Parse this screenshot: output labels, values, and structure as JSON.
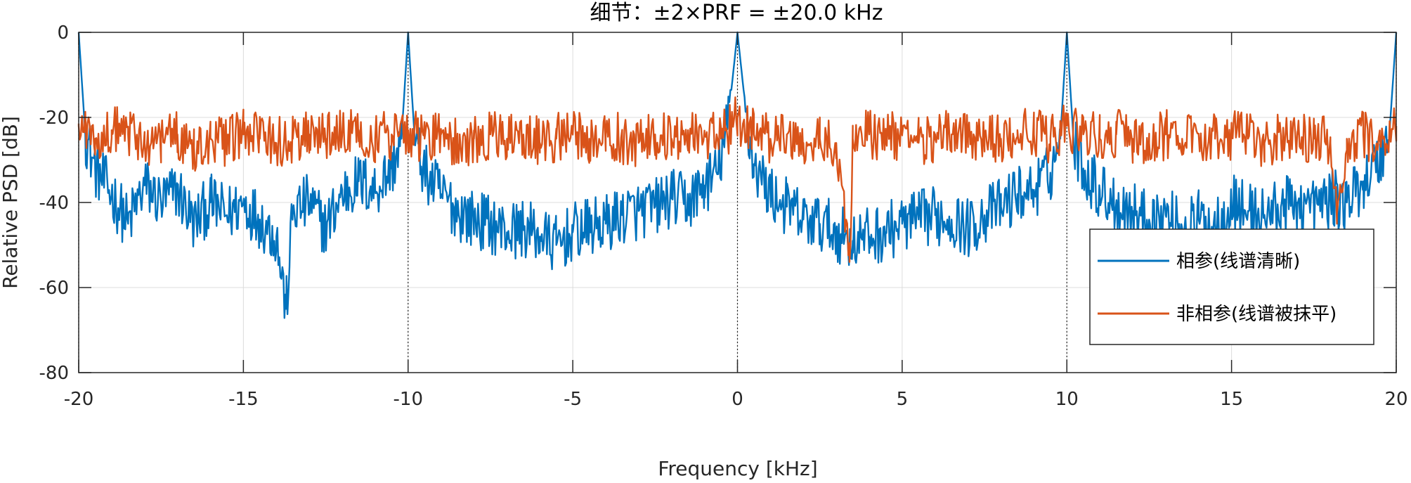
{
  "chart_data": {
    "type": "line",
    "title": "细节：±2×PRF = ±20.0 kHz",
    "xlabel": "Frequency [kHz]",
    "ylabel": "Relative PSD [dB]",
    "xlim": [
      -20,
      20
    ],
    "ylim": [
      -80,
      0
    ],
    "xticks": [
      -20,
      -15,
      -10,
      -5,
      0,
      5,
      10,
      15,
      20
    ],
    "xtick_labels": [
      "-20",
      "-15",
      "-10",
      "-5",
      "0",
      "5",
      "10",
      "15",
      "20"
    ],
    "yticks": [
      -80,
      -60,
      -40,
      -20,
      0
    ],
    "ytick_labels": [
      "-80",
      "-60",
      "-40",
      "-20",
      "0"
    ],
    "grid": true,
    "legend_position": "lower-right",
    "prf_markers_khz": [
      -20,
      -10,
      0,
      10,
      20
    ],
    "series": [
      {
        "name": "相参(线谱清晰)",
        "color": "#0072BD",
        "x": [
          -20,
          -19.8,
          -19.5,
          -19,
          -18.5,
          -18,
          -17.5,
          -17,
          -16.5,
          -16,
          -15.5,
          -15,
          -14.5,
          -14,
          -13.7,
          -13.5,
          -13,
          -12.5,
          -12,
          -11.5,
          -11,
          -10.5,
          -10.2,
          -10,
          -9.8,
          -9.5,
          -9,
          -8.5,
          -8,
          -7.5,
          -7,
          -6.5,
          -6,
          -5.5,
          -5,
          -4.5,
          -4,
          -3.5,
          -3,
          -2.5,
          -2,
          -1.5,
          -1,
          -0.6,
          -0.3,
          0,
          0.3,
          0.5,
          1,
          1.5,
          2,
          2.5,
          3,
          3.5,
          4,
          4.5,
          5,
          5.5,
          6,
          6.5,
          7,
          7.5,
          8,
          8.5,
          9,
          9.5,
          9.8,
          10,
          10.2,
          10.5,
          11,
          11.5,
          12,
          12.5,
          13,
          13.5,
          14,
          14.5,
          15,
          15.5,
          16,
          16.5,
          17,
          17.5,
          18,
          18.5,
          19,
          19.5,
          19.8,
          20
        ],
        "y": [
          0,
          -24,
          -32,
          -38,
          -45,
          -36,
          -40,
          -37,
          -45,
          -40,
          -43,
          -40,
          -44,
          -48,
          -65,
          -42,
          -40,
          -46,
          -38,
          -35,
          -37,
          -32,
          -25,
          0,
          -25,
          -33,
          -38,
          -42,
          -44,
          -45,
          -47,
          -46,
          -48,
          -50,
          -47,
          -46,
          -45,
          -43,
          -42,
          -41,
          -39,
          -40,
          -36,
          -33,
          -22,
          0,
          -22,
          -31,
          -38,
          -41,
          -44,
          -45,
          -47,
          -49,
          -48,
          -47,
          -45,
          -44,
          -43,
          -44,
          -46,
          -43,
          -41,
          -38,
          -37,
          -33,
          -25,
          0,
          -25,
          -32,
          -37,
          -40,
          -42,
          -44,
          -43,
          -46,
          -44,
          -45,
          -40,
          -42,
          -43,
          -41,
          -40,
          -41,
          -39,
          -40,
          -35,
          -30,
          -23,
          0
        ]
      },
      {
        "name": "非相参(线谱被抹平)",
        "color": "#D95319",
        "x": [
          -20,
          -19.5,
          -19,
          -18.5,
          -18,
          -17.5,
          -17,
          -16.5,
          -16,
          -15.5,
          -15,
          -14.5,
          -14,
          -13.5,
          -13,
          -12.5,
          -12,
          -11.5,
          -11,
          -10.5,
          -10,
          -9.5,
          -9,
          -8.5,
          -8,
          -7.5,
          -7,
          -6.5,
          -6,
          -5.5,
          -5,
          -4.5,
          -4,
          -3.5,
          -3,
          -2.5,
          -2,
          -1.5,
          -1,
          -0.5,
          0,
          0.5,
          1,
          1.5,
          2,
          2.5,
          3,
          3.4,
          3.5,
          4,
          4.5,
          5,
          5.5,
          6,
          6.5,
          7,
          7.5,
          8,
          8.5,
          9,
          9.5,
          10,
          10.5,
          11,
          11.5,
          12,
          12.5,
          13,
          13.5,
          14,
          14.5,
          15,
          15.5,
          16,
          16.5,
          17,
          17.5,
          18,
          18.2,
          18.5,
          19,
          19.5,
          20
        ],
        "y": [
          -22,
          -25,
          -23,
          -24,
          -26,
          -25,
          -24,
          -27,
          -25,
          -26,
          -24,
          -25,
          -26,
          -25,
          -24,
          -25,
          -24,
          -23,
          -25,
          -24,
          -23,
          -25,
          -24,
          -26,
          -25,
          -24,
          -25,
          -24,
          -26,
          -25,
          -24,
          -25,
          -24,
          -25,
          -26,
          -24,
          -25,
          -23,
          -24,
          -25,
          -20,
          -24,
          -25,
          -24,
          -26,
          -25,
          -26,
          -54,
          -25,
          -24,
          -25,
          -24,
          -26,
          -25,
          -24,
          -25,
          -24,
          -25,
          -23,
          -24,
          -25,
          -22,
          -24,
          -25,
          -24,
          -25,
          -26,
          -24,
          -25,
          -24,
          -25,
          -24,
          -25,
          -26,
          -25,
          -24,
          -25,
          -26,
          -45,
          -25,
          -24,
          -25,
          -22
        ]
      }
    ]
  }
}
